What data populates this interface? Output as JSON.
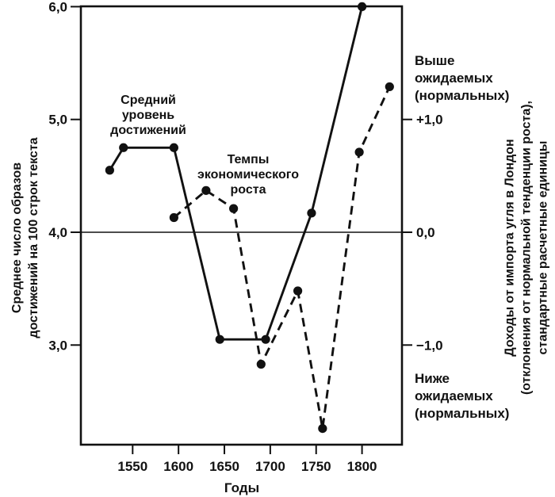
{
  "figure": {
    "background": "#ffffff",
    "ink_color": "#111111"
  },
  "chart_data": {
    "type": "line",
    "title": "",
    "grid": "off",
    "x_axis": {
      "title": "Годы",
      "tick_labels": [
        "1550",
        "1600",
        "1650",
        "1700",
        "1750",
        "1800"
      ],
      "tick_values": [
        1550,
        1600,
        1650,
        1700,
        1750,
        1800
      ],
      "range": [
        1494,
        1844
      ]
    },
    "left_axis": {
      "title": "Среднее число образов\nдостижений на 100 строк текста",
      "tick_labels": [
        "6,0",
        "5,0",
        "4,0",
        "3,0"
      ],
      "tick_values": [
        6.0,
        5.0,
        4.0,
        3.0
      ],
      "range": [
        2.1,
        6.0
      ]
    },
    "right_axis": {
      "title": "Доходы от импорта угля в Лондон\n(отклонения от нормальной тенденции роста),\nстандартные расчетные единицы",
      "tick_labels": [
        "+1,0",
        "0,0",
        "−1,0"
      ],
      "tick_values": [
        1.0,
        0.0,
        -1.0
      ],
      "above_label": "Выше\nожидаемых\n(нормальных)",
      "below_label": "Ниже\nожидаемых\n(нормальных)"
    },
    "reference_line": {
      "left_value": 4.0,
      "right_value": 0.0
    },
    "series": [
      {
        "name": "Средний уровень достижений",
        "annotation": "Средний\nуровень\nдостижений",
        "axis": "left",
        "line_style": "solid",
        "marker": "circle",
        "points": [
          {
            "year": 1525,
            "value": 4.55
          },
          {
            "year": 1540,
            "value": 4.75
          },
          {
            "year": 1595,
            "value": 4.75
          },
          {
            "year": 1645,
            "value": 3.05
          },
          {
            "year": 1695,
            "value": 3.05
          },
          {
            "year": 1745,
            "value": 4.17
          },
          {
            "year": 1800,
            "value": 6.0
          }
        ]
      },
      {
        "name": "Темпы экономического роста",
        "annotation": "Темпы\nэкономического\nроста",
        "axis": "right",
        "line_style": "dashed",
        "marker": "circle",
        "points": [
          {
            "year": 1595,
            "value": 0.13
          },
          {
            "year": 1630,
            "value": 0.37
          },
          {
            "year": 1660,
            "value": 0.21
          },
          {
            "year": 1690,
            "value": -1.17
          },
          {
            "year": 1730,
            "value": -0.52
          },
          {
            "year": 1757,
            "value": -1.74
          },
          {
            "year": 1797,
            "value": 0.71
          },
          {
            "year": 1830,
            "value": 1.29
          }
        ]
      }
    ]
  }
}
